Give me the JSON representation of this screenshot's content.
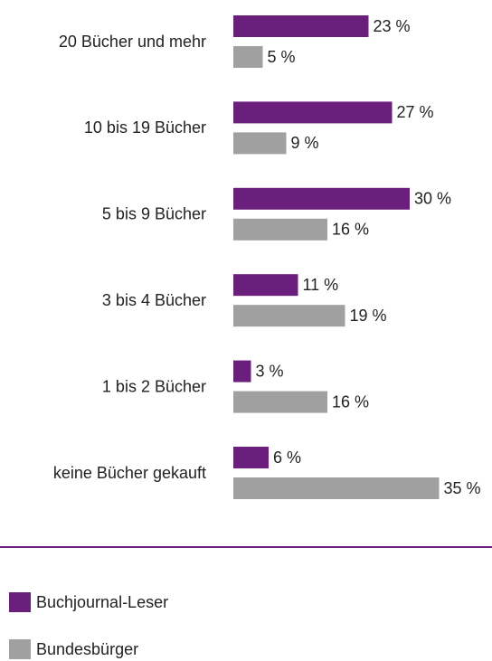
{
  "chart_data": {
    "type": "bar",
    "orientation": "horizontal",
    "categories": [
      "20 Bücher und mehr",
      "10 bis 19 Bücher",
      "5 bis 9 Bücher",
      "3 bis 4 Bücher",
      "1 bis 2 Bücher",
      "keine Bücher gekauft"
    ],
    "series": [
      {
        "name": "Buchjournal-Leser",
        "color": "#6b1f7c",
        "values": [
          23,
          27,
          30,
          11,
          3,
          6
        ],
        "value_labels": [
          "23 %",
          "27 %",
          "30 %",
          "11 %",
          "3 %",
          "6 %"
        ]
      },
      {
        "name": "Bundesbürger",
        "color": "#a0a0a0",
        "values": [
          5,
          9,
          16,
          19,
          16,
          35
        ],
        "value_labels": [
          "5 %",
          "9 %",
          "16 %",
          "19 %",
          "16 %",
          "35 %"
        ]
      }
    ]
  }
}
